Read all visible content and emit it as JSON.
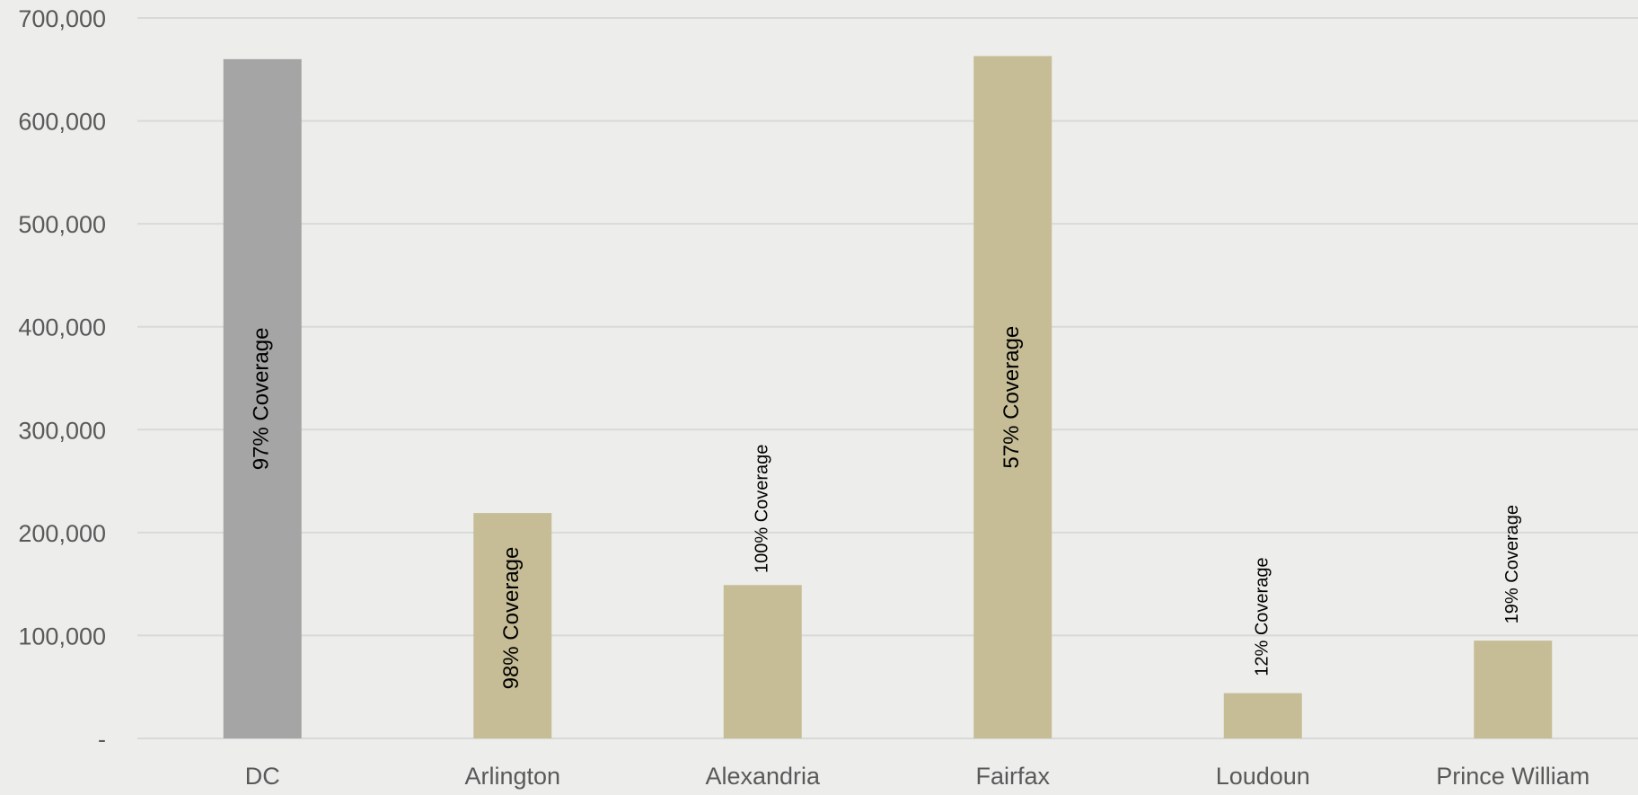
{
  "chart_data": {
    "type": "bar",
    "title": "",
    "xlabel": "",
    "ylabel": "",
    "categories": [
      "DC",
      "Arlington",
      "Alexandria",
      "Fairfax",
      "Loudoun",
      "Prince William"
    ],
    "values": [
      660000,
      219000,
      149000,
      663000,
      44000,
      95000
    ],
    "data_labels": [
      "97% Coverage",
      "98% Coverage",
      "100% Coverage",
      "57% Coverage",
      "12% Coverage",
      "19% Coverage"
    ],
    "ylim": [
      0,
      700000
    ],
    "yticks": [
      0,
      100000,
      200000,
      300000,
      400000,
      500000,
      600000,
      700000
    ],
    "ytick_labels": [
      "-",
      "100,000",
      "200,000",
      "300,000",
      "400,000",
      "500,000",
      "600,000",
      "700,000"
    ],
    "grid": true,
    "legend": "none",
    "colors": [
      "#a5a5a5",
      "#c6bd96",
      "#c6bd96",
      "#c6bd96",
      "#c6bd96",
      "#c6bd96"
    ]
  }
}
